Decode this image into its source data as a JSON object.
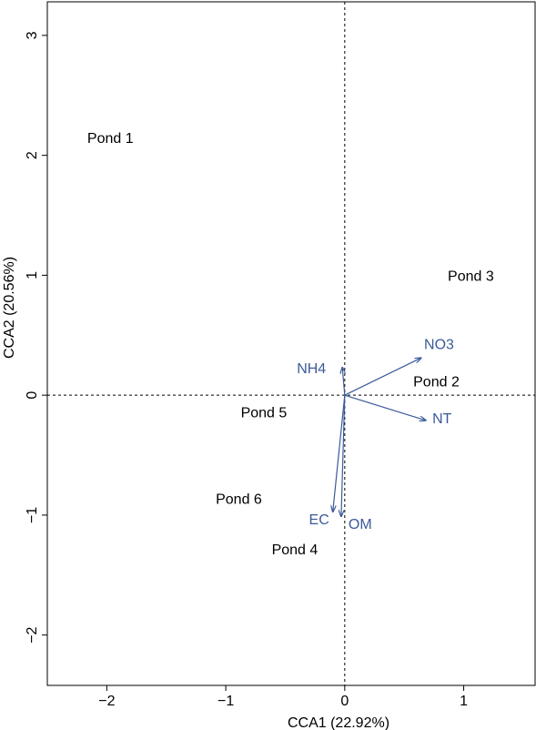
{
  "chart_data": {
    "type": "scatter",
    "title": "",
    "xlabel": "CCA1 (22.92%)",
    "ylabel": "CCA2 (20.56%)",
    "xlim": [
      -2.5,
      1.6
    ],
    "ylim": [
      -2.42,
      3.28
    ],
    "x_ticks": [
      -2,
      -1,
      0,
      1
    ],
    "y_ticks": [
      -2,
      -1,
      0,
      1,
      2,
      3
    ],
    "reference_lines": {
      "x": 0,
      "y": 0,
      "style": "dashed"
    },
    "vector_color": "#3B5A9A",
    "sites": [
      {
        "label": "Pond 1",
        "x": -1.97,
        "y": 2.15
      },
      {
        "label": "Pond 2",
        "x": 0.77,
        "y": 0.12
      },
      {
        "label": "Pond 3",
        "x": 1.06,
        "y": 1.0
      },
      {
        "label": "Pond 4",
        "x": -0.42,
        "y": -1.28
      },
      {
        "label": "Pond 5",
        "x": -0.68,
        "y": -0.14
      },
      {
        "label": "Pond 6",
        "x": -0.89,
        "y": -0.86
      }
    ],
    "vectors": [
      {
        "label": "NO3",
        "x": 0.64,
        "y": 0.31
      },
      {
        "label": "NT",
        "x": 0.68,
        "y": -0.21
      },
      {
        "label": "NH4",
        "x": -0.02,
        "y": 0.23
      },
      {
        "label": "EC",
        "x": -0.1,
        "y": -0.97
      },
      {
        "label": "OM",
        "x": -0.03,
        "y": -1.01
      }
    ]
  }
}
